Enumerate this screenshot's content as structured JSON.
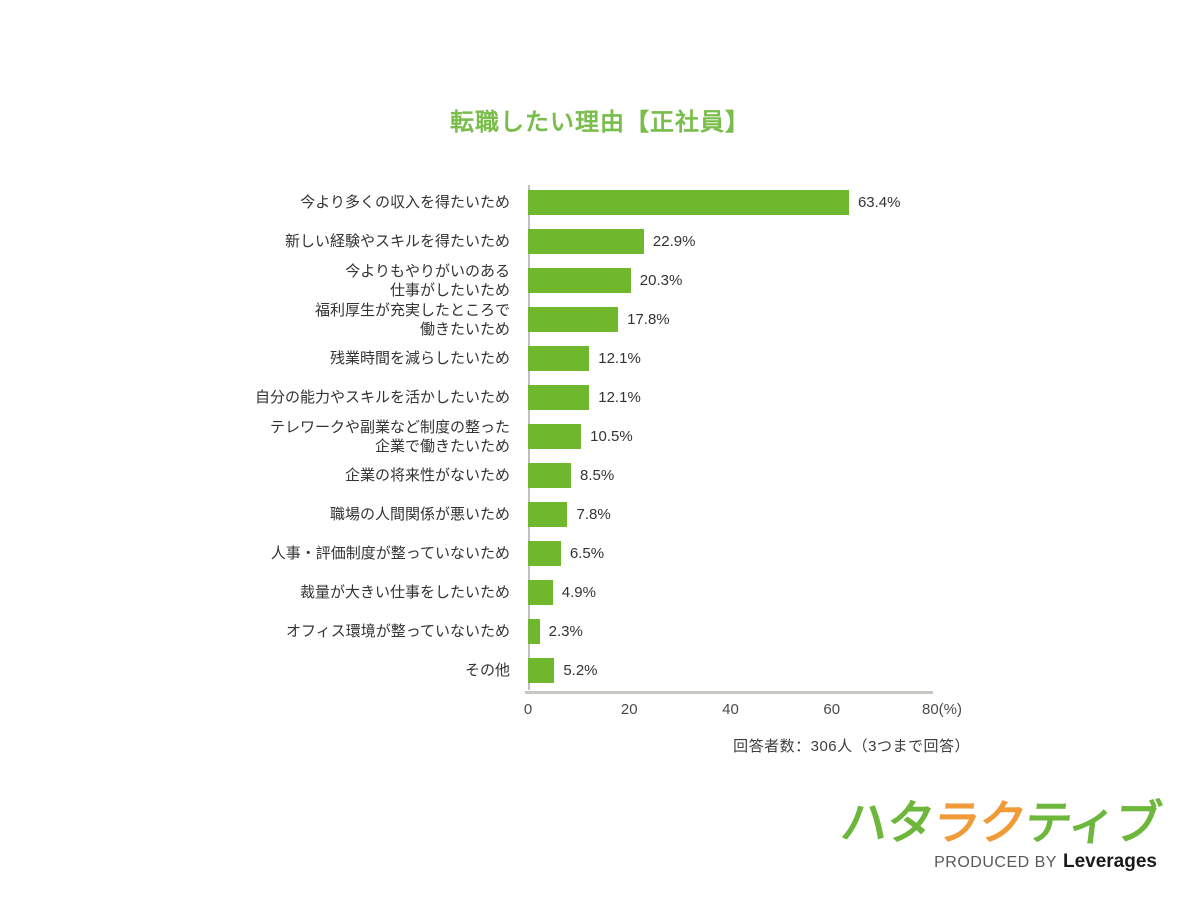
{
  "title": {
    "text": "転職したい理由【正社員】",
    "color": "#79bd4a"
  },
  "chart_data": {
    "type": "bar",
    "orientation": "horizontal",
    "title": "転職したい理由【正社員】",
    "categories": [
      "今より多くの収入を得たいため",
      "新しい経験やスキルを得たいため",
      "今よりもやりがいのある\n仕事がしたいため",
      "福利厚生が充実したところで\n働きたいため",
      "残業時間を減らしたいため",
      "自分の能力やスキルを活かしたいため",
      "テレワークや副業など制度の整った\n企業で働きたいため",
      "企業の将来性がないため",
      "職場の人間関係が悪いため",
      "人事・評価制度が整っていないため",
      "裁量が大きい仕事をしたいため",
      "オフィス環境が整っていないため",
      "その他"
    ],
    "values": [
      63.4,
      22.9,
      20.3,
      17.8,
      12.1,
      12.1,
      10.5,
      8.5,
      7.8,
      6.5,
      4.9,
      2.3,
      5.2
    ],
    "value_labels": [
      "63.4%",
      "22.9%",
      "20.3%",
      "17.8%",
      "12.1%",
      "12.1%",
      "10.5%",
      "8.5%",
      "7.8%",
      "6.5%",
      "4.9%",
      "2.3%",
      "5.2%"
    ],
    "xlim": [
      0,
      80
    ],
    "x_tick_values": [
      0,
      20,
      40,
      60,
      80
    ],
    "x_tick_labels": [
      "0",
      "20",
      "40",
      "60",
      "80(%)"
    ],
    "bar_color": "#6fb82d",
    "axis_color": "#c6c6c2",
    "grid": false,
    "legend": false
  },
  "note": {
    "text": "回答者数：306人（3つまで回答）"
  },
  "logo": {
    "brand_name": "ハタラクティブ",
    "brand_chars": [
      {
        "ch": "ハ",
        "color": "#6db73c"
      },
      {
        "ch": "タ",
        "color": "#6db73c"
      },
      {
        "ch": "ラ",
        "color": "#f09b38"
      },
      {
        "ch": "ク",
        "color": "#f09b38"
      },
      {
        "ch": "テ",
        "color": "#6db73c"
      },
      {
        "ch": "ィ",
        "color": "#6db73c"
      },
      {
        "ch": "ブ",
        "color": "#6db73c"
      }
    ],
    "subtext_prefix": "PRODUCED BY",
    "subtext_brand": "Leverages"
  }
}
